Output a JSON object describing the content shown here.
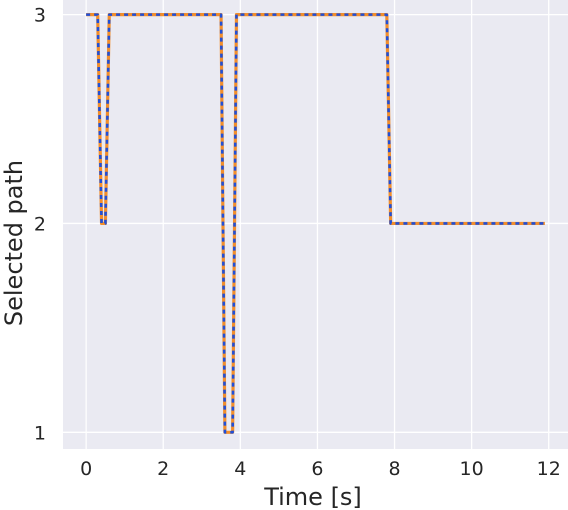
{
  "chart_data": {
    "type": "line",
    "title": "",
    "xlabel": "Time [s]",
    "ylabel": "Selected path",
    "xlim": [
      -0.6,
      12.5
    ],
    "ylim": [
      0.92,
      3.07
    ],
    "xticks": [
      0,
      2,
      4,
      6,
      8,
      10,
      12
    ],
    "xtick_labels": [
      "0",
      "2",
      "4",
      "6",
      "8",
      "10",
      "12"
    ],
    "yticks": [
      1,
      2,
      3
    ],
    "ytick_labels": [
      "1",
      "2",
      "3"
    ],
    "grid": true,
    "legend": "none",
    "colors": {
      "background": "#eaeaf2",
      "grid": "#ffffff"
    },
    "series": [
      {
        "color": "#f28e2b",
        "style": "solid",
        "x": [
          0.0,
          0.3,
          0.4,
          0.5,
          0.6,
          3.5,
          3.6,
          3.8,
          3.9,
          7.8,
          7.9,
          11.9
        ],
        "values": [
          3,
          3,
          2,
          2,
          3,
          3,
          1,
          1,
          3,
          3,
          2,
          2
        ]
      },
      {
        "color": "#1f4fd8",
        "style": "dotted",
        "x": [
          0.0,
          0.3,
          0.4,
          0.5,
          0.6,
          3.5,
          3.6,
          3.8,
          3.9,
          7.8,
          7.9,
          11.9
        ],
        "values": [
          3,
          3,
          2,
          2,
          3,
          3,
          1,
          1,
          3,
          3,
          2,
          2
        ]
      }
    ]
  }
}
